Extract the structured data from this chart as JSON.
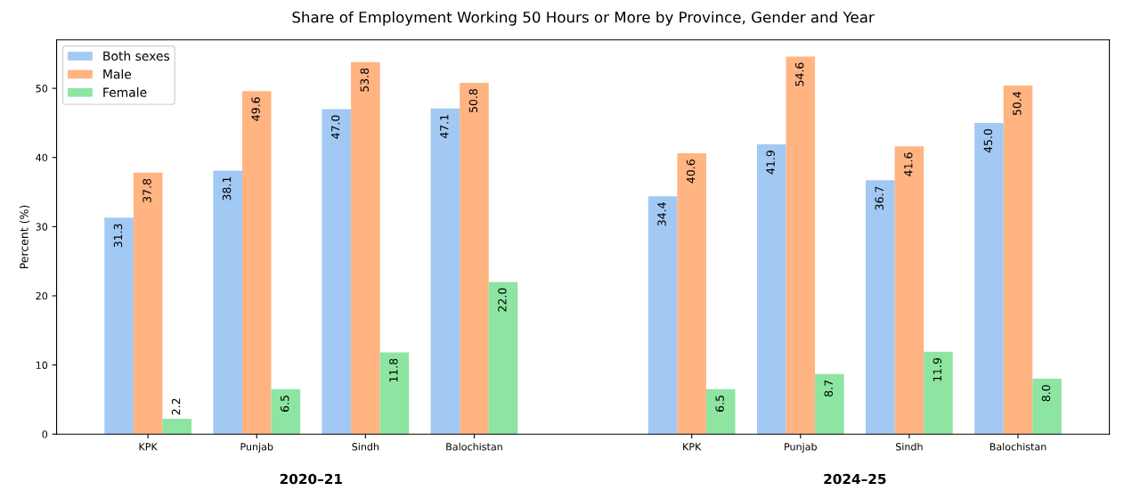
{
  "chart_data": {
    "type": "bar",
    "title": "Share of Employment Working 50 Hours or More by Province, Gender and Year",
    "ylabel": "Percent (%)",
    "categories": [
      "KPK",
      "Punjab",
      "Sindh",
      "Balochistan",
      null,
      "KPK",
      "Punjab",
      "Sindh",
      "Balochistan"
    ],
    "series": [
      {
        "name": "Both sexes",
        "color": "#a1c9f4",
        "values": [
          31.3,
          38.1,
          47.0,
          47.1,
          null,
          34.4,
          41.9,
          36.7,
          45.0
        ],
        "value_labels": [
          "31.3",
          "38.1",
          "47.0",
          "47.1",
          null,
          "34.4",
          "41.9",
          "36.7",
          "45.0"
        ]
      },
      {
        "name": "Male",
        "color": "#ffb482",
        "values": [
          37.8,
          49.6,
          53.8,
          50.8,
          null,
          40.6,
          54.6,
          41.6,
          50.4
        ],
        "value_labels": [
          "37.8",
          "49.6",
          "53.8",
          "50.8",
          null,
          "40.6",
          "54.6",
          "41.6",
          "50.4"
        ]
      },
      {
        "name": "Female",
        "color": "#8de5a1",
        "values": [
          2.2,
          6.5,
          11.8,
          22.0,
          null,
          6.5,
          8.7,
          11.9,
          8.0
        ],
        "value_labels": [
          "2.2",
          "6.5",
          "11.8",
          "22.0",
          null,
          "6.5",
          "8.7",
          "11.9",
          "8.0"
        ]
      }
    ],
    "ylim": [
      0,
      57
    ],
    "yticks": [
      0,
      10,
      20,
      30,
      40,
      50
    ],
    "grid": false,
    "legend": "top left",
    "annotations": [
      "2020–21",
      "2024–25"
    ]
  }
}
